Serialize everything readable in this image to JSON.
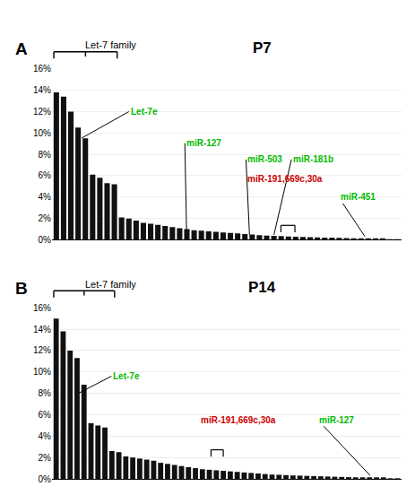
{
  "chart_data": [
    {
      "type": "bar",
      "title": "P7",
      "categories": [
        null,
        null,
        null,
        null,
        null,
        null,
        null,
        null,
        null,
        null,
        null,
        null,
        null,
        null,
        null,
        null,
        null,
        null,
        null,
        null,
        null,
        null,
        null,
        null,
        null,
        null,
        null,
        null,
        null,
        null,
        null,
        null,
        null,
        null,
        null,
        null,
        null,
        null,
        null,
        null,
        null,
        null,
        null,
        null,
        null,
        null,
        null,
        null
      ],
      "values": [
        0.138,
        0.134,
        0.12,
        0.105,
        0.095,
        0.061,
        0.058,
        0.053,
        0.052,
        0.021,
        0.02,
        0.018,
        0.016,
        0.015,
        0.014,
        0.013,
        0.012,
        0.011,
        0.01,
        0.009,
        0.0085,
        0.008,
        0.0075,
        0.007,
        0.0065,
        0.006,
        0.0055,
        0.005,
        0.0045,
        0.004,
        0.0038,
        0.0035,
        0.0032,
        0.003,
        0.0028,
        0.0026,
        0.0024,
        0.0022,
        0.002,
        0.0018,
        0.0016,
        0.0014,
        0.0012,
        0.001,
        0.0008,
        0.0006,
        0.0004,
        0.0002
      ],
      "color": "#111111",
      "ylim": [
        0,
        0.16
      ],
      "yticks": [
        {
          "value": 0,
          "label": "0%"
        },
        {
          "value": 0.02,
          "label": "2%"
        },
        {
          "value": 0.04,
          "label": "4%"
        },
        {
          "value": 0.06,
          "label": "6%"
        },
        {
          "value": 0.08,
          "label": "8%"
        },
        {
          "value": 0.1,
          "label": "10%"
        },
        {
          "value": 0.12,
          "label": "12%"
        },
        {
          "value": 0.14,
          "label": "14%"
        },
        {
          "value": 0.16,
          "label": "16%"
        }
      ],
      "grid": true,
      "tick_labels": "y",
      "annotations": [
        {
          "text": "A"
        },
        {
          "text": "Let-7 family"
        },
        {
          "text": "Let-7e",
          "color": "#00bb00"
        },
        {
          "text": "miR-127",
          "color": "#00bb00"
        },
        {
          "text": "miR-503",
          "color": "#00bb00"
        },
        {
          "text": "miR-181b",
          "color": "#00bb00"
        },
        {
          "text": "miR-191,669c,30a",
          "color": "#cc0000"
        },
        {
          "text": "miR-451",
          "color": "#00bb00"
        }
      ]
    },
    {
      "type": "bar",
      "title": "P14",
      "categories": [
        null,
        null,
        null,
        null,
        null,
        null,
        null,
        null,
        null,
        null,
        null,
        null,
        null,
        null,
        null,
        null,
        null,
        null,
        null,
        null,
        null,
        null,
        null,
        null,
        null,
        null,
        null,
        null,
        null,
        null,
        null,
        null,
        null,
        null,
        null,
        null,
        null,
        null,
        null,
        null,
        null,
        null,
        null,
        null,
        null,
        null,
        null,
        null,
        null,
        null
      ],
      "values": [
        0.15,
        0.138,
        0.12,
        0.113,
        0.088,
        0.052,
        0.05,
        0.048,
        0.026,
        0.025,
        0.021,
        0.02,
        0.019,
        0.018,
        0.017,
        0.015,
        0.014,
        0.013,
        0.012,
        0.011,
        0.01,
        0.009,
        0.0085,
        0.008,
        0.0075,
        0.007,
        0.0065,
        0.006,
        0.0055,
        0.005,
        0.0045,
        0.004,
        0.0038,
        0.0035,
        0.0032,
        0.003,
        0.0028,
        0.0026,
        0.0024,
        0.0022,
        0.002,
        0.0018,
        0.0016,
        0.0014,
        0.0012,
        0.001,
        0.0008,
        0.0006,
        0.0004,
        0.0002
      ],
      "color": "#111111",
      "ylim": [
        0,
        0.16
      ],
      "yticks": [
        {
          "value": 0,
          "label": "0%"
        },
        {
          "value": 0.02,
          "label": "2%"
        },
        {
          "value": 0.04,
          "label": "4%"
        },
        {
          "value": 0.06,
          "label": "6%"
        },
        {
          "value": 0.08,
          "label": "8%"
        },
        {
          "value": 0.1,
          "label": "10%"
        },
        {
          "value": 0.12,
          "label": "12%"
        },
        {
          "value": 0.14,
          "label": "14%"
        },
        {
          "value": 0.16,
          "label": "16%"
        }
      ],
      "grid": true,
      "tick_labels": "y",
      "annotations": [
        {
          "text": "B"
        },
        {
          "text": "Let-7 family"
        },
        {
          "text": "Let-7e",
          "color": "#00bb00"
        },
        {
          "text": "miR-191,669c,30a",
          "color": "#cc0000"
        },
        {
          "text": "miR-127",
          "color": "#00bb00"
        }
      ]
    }
  ]
}
